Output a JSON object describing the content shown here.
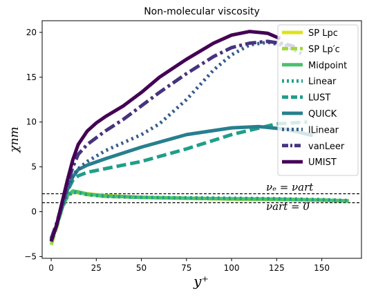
{
  "chart_data": {
    "type": "line",
    "title": "Non-molecular viscosity",
    "xlabel": "y⁺",
    "ylabel": "χnm",
    "xlim": [
      -5,
      172
    ],
    "ylim": [
      -5.2,
      21.3
    ],
    "xticks": [
      0,
      25,
      50,
      75,
      100,
      125,
      150
    ],
    "yticks": [
      -5,
      0,
      5,
      10,
      15,
      20
    ],
    "grid": false,
    "legend_position": "top-right",
    "hlines": [
      {
        "y": 2.0,
        "style": "dashed",
        "color": "#000000",
        "label": "νₑ = νart"
      },
      {
        "y": 1.0,
        "style": "dashed",
        "color": "#000000",
        "label": "νart = 0"
      }
    ],
    "series": [
      {
        "name": "SP Lpc",
        "color": "#dde318",
        "dash": "solid",
        "x": [
          0,
          3,
          6,
          9,
          12,
          15,
          20,
          30,
          50,
          75,
          100,
          125,
          150,
          165
        ],
        "y": [
          -3.3,
          -1.5,
          0.5,
          1.8,
          2.3,
          2.2,
          2.0,
          1.8,
          1.6,
          1.5,
          1.4,
          1.35,
          1.3,
          1.2
        ]
      },
      {
        "name": "SP Lp′c",
        "color": "#a0da39",
        "dash": "dashed",
        "x": [
          0,
          3,
          6,
          9,
          12,
          15,
          20,
          30,
          50,
          75,
          100,
          125,
          150,
          165
        ],
        "y": [
          -3.7,
          -1.8,
          0.3,
          1.7,
          2.2,
          2.1,
          1.9,
          1.7,
          1.6,
          1.5,
          1.4,
          1.35,
          1.3,
          1.2
        ]
      },
      {
        "name": "Midpoint",
        "color": "#4ac16d",
        "dash": "solid",
        "x": [
          0,
          3,
          6,
          9,
          12,
          15,
          20,
          30,
          50,
          75,
          100,
          125,
          150,
          165
        ],
        "y": [
          -3.4,
          -1.6,
          0.4,
          1.8,
          2.3,
          2.2,
          1.95,
          1.75,
          1.6,
          1.5,
          1.45,
          1.4,
          1.3,
          1.2
        ]
      },
      {
        "name": "Linear",
        "color": "#1fa187",
        "dash": "dotted",
        "x": [
          0,
          3,
          6,
          9,
          12,
          15,
          20,
          30,
          50,
          75,
          100,
          125,
          150,
          165
        ],
        "y": [
          -3.2,
          -1.5,
          0.4,
          1.7,
          2.2,
          2.1,
          1.9,
          1.7,
          1.6,
          1.55,
          1.5,
          1.45,
          1.35,
          1.25
        ]
      },
      {
        "name": "LUST",
        "color": "#1f9e89",
        "dash": "dashed",
        "x": [
          0,
          3,
          6,
          9,
          12,
          15,
          20,
          30,
          50,
          75,
          100,
          125,
          142
        ],
        "y": [
          -3.2,
          -1.5,
          0.5,
          2.3,
          3.5,
          4.0,
          4.4,
          4.8,
          5.6,
          7.0,
          8.6,
          9.8,
          10.0
        ]
      },
      {
        "name": "QUICK",
        "color": "#277f8e",
        "dash": "solid",
        "x": [
          0,
          3,
          6,
          9,
          12,
          15,
          20,
          30,
          50,
          75,
          100,
          115,
          130,
          145
        ],
        "y": [
          -3.2,
          -1.5,
          0.5,
          2.4,
          3.9,
          4.7,
          5.2,
          5.9,
          7.2,
          8.6,
          9.35,
          9.5,
          9.2,
          8.5
        ]
      },
      {
        "name": "lLinear",
        "color": "#365c8d",
        "dash": "dotted",
        "x": [
          0,
          3,
          6,
          9,
          12,
          15,
          20,
          30,
          40,
          50,
          60,
          75,
          90,
          100,
          110,
          120,
          130,
          140
        ],
        "y": [
          -3.2,
          -1.5,
          0.5,
          2.5,
          4.0,
          4.8,
          5.6,
          6.8,
          7.7,
          8.6,
          9.8,
          12.5,
          15.8,
          17.5,
          18.6,
          18.9,
          18.5,
          17.5
        ]
      },
      {
        "name": "vanLeer",
        "color": "#46337e",
        "dash": "dashdot",
        "x": [
          0,
          3,
          6,
          9,
          12,
          15,
          20,
          30,
          40,
          50,
          60,
          75,
          90,
          100,
          110,
          120,
          130,
          135
        ],
        "y": [
          -3.0,
          -1.3,
          0.8,
          3.0,
          5.0,
          6.4,
          7.5,
          9.0,
          10.3,
          11.8,
          13.3,
          15.4,
          17.3,
          18.3,
          18.8,
          19.0,
          18.7,
          18.4
        ]
      },
      {
        "name": "UMIST",
        "color": "#440154",
        "dash": "solid",
        "x": [
          0,
          3,
          6,
          9,
          12,
          15,
          20,
          25,
          30,
          40,
          50,
          60,
          75,
          90,
          100,
          110,
          120,
          127
        ],
        "y": [
          -3.3,
          -1.5,
          1.0,
          3.5,
          5.8,
          7.5,
          9.0,
          9.9,
          10.6,
          11.8,
          13.3,
          15.0,
          17.0,
          18.8,
          19.7,
          20.1,
          19.9,
          19.3
        ]
      }
    ]
  }
}
